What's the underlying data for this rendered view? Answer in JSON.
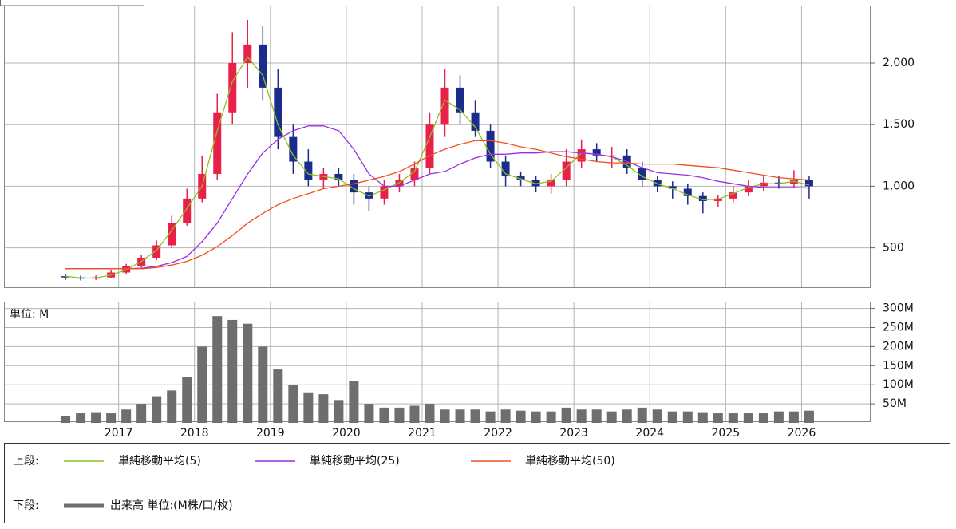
{
  "chart_data": [
    {
      "type": "candlestick",
      "x": [
        2016.3,
        2016.5,
        2016.7,
        2016.9,
        2017.1,
        2017.3,
        2017.5,
        2017.7,
        2017.9,
        2018.1,
        2018.3,
        2018.5,
        2018.7,
        2018.9,
        2019.1,
        2019.3,
        2019.5,
        2019.7,
        2019.9,
        2020.1,
        2020.3,
        2020.5,
        2020.7,
        2020.9,
        2021.1,
        2021.3,
        2021.5,
        2021.7,
        2021.9,
        2022.1,
        2022.3,
        2022.5,
        2022.7,
        2022.9,
        2023.1,
        2023.3,
        2023.5,
        2023.7,
        2023.9,
        2024.1,
        2024.3,
        2024.5,
        2024.7,
        2024.9,
        2025.1,
        2025.3,
        2025.5,
        2025.7,
        2025.9,
        2026.1
      ],
      "open": [
        270,
        260,
        250,
        260,
        300,
        350,
        420,
        520,
        700,
        900,
        1100,
        1600,
        2000,
        2150,
        1800,
        1400,
        1200,
        1050,
        1100,
        1050,
        950,
        900,
        1000,
        1050,
        1150,
        1500,
        1800,
        1600,
        1450,
        1200,
        1080,
        1050,
        1000,
        1050,
        1200,
        1300,
        1250,
        1250,
        1150,
        1050,
        1000,
        980,
        920,
        880,
        900,
        950,
        1000,
        1030,
        1020,
        1050
      ],
      "high": [
        290,
        275,
        275,
        320,
        370,
        440,
        560,
        760,
        980,
        1250,
        1750,
        2250,
        2350,
        2300,
        1950,
        1500,
        1300,
        1150,
        1150,
        1100,
        1000,
        1050,
        1100,
        1200,
        1600,
        1950,
        1900,
        1700,
        1500,
        1250,
        1120,
        1080,
        1100,
        1300,
        1380,
        1350,
        1320,
        1300,
        1200,
        1080,
        1040,
        1020,
        950,
        930,
        1000,
        1050,
        1080,
        1080,
        1130,
        1080
      ],
      "low": [
        240,
        235,
        240,
        255,
        290,
        340,
        400,
        500,
        680,
        870,
        1050,
        1500,
        1800,
        1700,
        1300,
        1100,
        1000,
        980,
        1000,
        850,
        800,
        850,
        950,
        1000,
        1100,
        1400,
        1500,
        1400,
        1150,
        1000,
        1000,
        950,
        940,
        1000,
        1150,
        1200,
        1150,
        1100,
        1000,
        950,
        900,
        850,
        780,
        830,
        870,
        920,
        960,
        980,
        990,
        900
      ],
      "close": [
        260,
        250,
        260,
        300,
        350,
        420,
        520,
        700,
        900,
        1100,
        1600,
        2000,
        2150,
        1800,
        1400,
        1200,
        1050,
        1100,
        1050,
        950,
        900,
        1000,
        1050,
        1150,
        1500,
        1800,
        1600,
        1450,
        1200,
        1080,
        1050,
        1000,
        1050,
        1200,
        1300,
        1250,
        1250,
        1150,
        1050,
        1000,
        980,
        920,
        880,
        900,
        950,
        1000,
        1030,
        1020,
        1050,
        1000
      ],
      "up_color": "#e8204a",
      "down_color": "#1c2c8c",
      "series": [
        {
          "name": "単純移動平均(5)",
          "color": "#8cc21e",
          "values": [
            270,
            255,
            255,
            280,
            320,
            390,
            480,
            640,
            820,
            1000,
            1450,
            1850,
            2050,
            1900,
            1500,
            1250,
            1100,
            1080,
            1060,
            980,
            920,
            970,
            1030,
            1120,
            1400,
            1700,
            1620,
            1480,
            1260,
            1100,
            1060,
            1020,
            1040,
            1150,
            1270,
            1260,
            1240,
            1170,
            1080,
            1020,
            980,
            930,
            890,
            895,
            940,
            990,
            1020,
            1020,
            1040,
            1010
          ]
        },
        {
          "name": "単純移動平均(25)",
          "color": "#9a2ee6",
          "values": [
            330,
            330,
            330,
            330,
            330,
            335,
            350,
            380,
            430,
            550,
            700,
            900,
            1100,
            1270,
            1380,
            1450,
            1490,
            1490,
            1450,
            1300,
            1100,
            1000,
            1000,
            1050,
            1100,
            1120,
            1180,
            1230,
            1260,
            1260,
            1270,
            1270,
            1280,
            1280,
            1270,
            1260,
            1240,
            1200,
            1150,
            1110,
            1100,
            1090,
            1070,
            1040,
            1020,
            1000,
            990,
            990,
            990,
            985
          ]
        },
        {
          "name": "単純移動平均(50)",
          "color": "#f05020",
          "values": [
            330,
            330,
            330,
            330,
            330,
            330,
            340,
            360,
            390,
            440,
            510,
            600,
            700,
            780,
            850,
            900,
            940,
            980,
            1000,
            1020,
            1050,
            1080,
            1120,
            1180,
            1250,
            1300,
            1340,
            1370,
            1370,
            1350,
            1320,
            1300,
            1270,
            1240,
            1220,
            1200,
            1190,
            1190,
            1180,
            1180,
            1180,
            1170,
            1160,
            1150,
            1130,
            1110,
            1090,
            1070,
            1060,
            1050
          ]
        }
      ],
      "legend_label": "上段:",
      "xlim": [
        2015.5,
        2026.9
      ],
      "xticks": [
        2017,
        2018,
        2019,
        2020,
        2021,
        2022,
        2023,
        2024,
        2025,
        2026
      ],
      "ylim": [
        180,
        2460
      ],
      "yticks": [
        500,
        {
          "value": 1000,
          "label": "1,000"
        },
        {
          "value": 1500,
          "label": "1,500"
        },
        {
          "value": 2000,
          "label": "2,000"
        }
      ],
      "grid": true
    },
    {
      "type": "bar",
      "unit_label": "単位: M",
      "legend_label": "下段:",
      "x": [
        2016.3,
        2016.5,
        2016.7,
        2016.9,
        2017.1,
        2017.3,
        2017.5,
        2017.7,
        2017.9,
        2018.1,
        2018.3,
        2018.5,
        2018.7,
        2018.9,
        2019.1,
        2019.3,
        2019.5,
        2019.7,
        2019.9,
        2020.1,
        2020.3,
        2020.5,
        2020.7,
        2020.9,
        2021.1,
        2021.3,
        2021.5,
        2021.7,
        2021.9,
        2022.1,
        2022.3,
        2022.5,
        2022.7,
        2022.9,
        2023.1,
        2023.3,
        2023.5,
        2023.7,
        2023.9,
        2024.1,
        2024.3,
        2024.5,
        2024.7,
        2024.9,
        2025.1,
        2025.3,
        2025.5,
        2025.7,
        2025.9,
        2026.1
      ],
      "series": [
        {
          "name": "出来高 単位:(M株/口/枚)",
          "color": "#6e6e6e",
          "values": [
            18,
            25,
            28,
            25,
            35,
            50,
            70,
            85,
            120,
            200,
            280,
            270,
            260,
            200,
            140,
            100,
            80,
            75,
            60,
            110,
            50,
            40,
            40,
            45,
            50,
            35,
            35,
            35,
            30,
            35,
            32,
            30,
            30,
            40,
            35,
            35,
            30,
            35,
            40,
            35,
            30,
            30,
            28,
            25,
            25,
            25,
            25,
            30,
            30,
            32
          ]
        }
      ],
      "xlim": [
        2015.5,
        2026.9
      ],
      "xticks": [
        2017,
        2018,
        2019,
        2020,
        2021,
        2022,
        2023,
        2024,
        2025,
        2026
      ],
      "ylim": [
        0,
        318
      ],
      "yticks": [
        {
          "value": 50,
          "label": "50M"
        },
        {
          "value": 100,
          "label": "100M"
        },
        {
          "value": 150,
          "label": "150M"
        },
        {
          "value": 200,
          "label": "200M"
        },
        {
          "value": 250,
          "label": "250M"
        },
        {
          "value": 300,
          "label": "300M"
        }
      ],
      "grid": true
    }
  ]
}
